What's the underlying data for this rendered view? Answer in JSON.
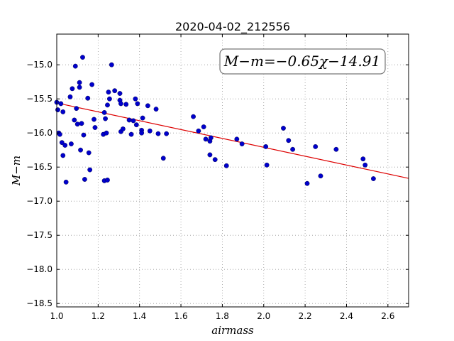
{
  "chart_data": {
    "type": "scatter",
    "title": "2020-04-02_212556",
    "xlabel": "airmass",
    "ylabel": "M−m",
    "xlim": [
      1.0,
      2.7
    ],
    "ylim": [
      -18.55,
      -14.55
    ],
    "x_ticks": [
      1.0,
      1.2,
      1.4,
      1.6,
      1.8,
      2.0,
      2.2,
      2.4,
      2.6
    ],
    "x_tick_labels": [
      "1.0",
      "1.2",
      "1.4",
      "1.6",
      "1.8",
      "2.0",
      "2.2",
      "2.4",
      "2.6"
    ],
    "y_ticks": [
      -15.0,
      -15.5,
      -16.0,
      -16.5,
      -17.0,
      -17.5,
      -18.0,
      -18.5
    ],
    "y_tick_labels": [
      "−15.0",
      "−15.5",
      "−16.0",
      "−16.5",
      "−17.0",
      "−17.5",
      "−18.0",
      "−18.5"
    ],
    "grid": true,
    "point_color": "#0000cc",
    "line_color": "#dd0000",
    "fit": {
      "slope": -0.65,
      "intercept": -14.91
    },
    "annotation": "M−m=−0.65χ−14.91",
    "points": [
      [
        1.0,
        -15.55
      ],
      [
        1.005,
        -15.66
      ],
      [
        1.01,
        -16.0
      ],
      [
        1.015,
        -16.02
      ],
      [
        1.02,
        -15.57
      ],
      [
        1.025,
        -16.14
      ],
      [
        1.03,
        -15.69
      ],
      [
        1.03,
        -16.33
      ],
      [
        1.04,
        -16.18
      ],
      [
        1.045,
        -16.72
      ],
      [
        1.065,
        -15.47
      ],
      [
        1.07,
        -16.16
      ],
      [
        1.075,
        -15.35
      ],
      [
        1.085,
        -15.81
      ],
      [
        1.09,
        -15.02
      ],
      [
        1.095,
        -15.64
      ],
      [
        1.1,
        -15.87
      ],
      [
        1.11,
        -15.26
      ],
      [
        1.11,
        -15.33
      ],
      [
        1.115,
        -16.25
      ],
      [
        1.12,
        -15.86
      ],
      [
        1.125,
        -14.89
      ],
      [
        1.13,
        -16.03
      ],
      [
        1.135,
        -16.68
      ],
      [
        1.15,
        -15.49
      ],
      [
        1.155,
        -16.29
      ],
      [
        1.16,
        -16.54
      ],
      [
        1.17,
        -15.29
      ],
      [
        1.18,
        -15.8
      ],
      [
        1.185,
        -15.92
      ],
      [
        1.225,
        -16.02
      ],
      [
        1.23,
        -15.7
      ],
      [
        1.235,
        -15.79
      ],
      [
        1.23,
        -16.7
      ],
      [
        1.24,
        -16.0
      ],
      [
        1.245,
        -15.59
      ],
      [
        1.245,
        -16.69
      ],
      [
        1.25,
        -15.4
      ],
      [
        1.255,
        -15.5
      ],
      [
        1.265,
        -15.0
      ],
      [
        1.28,
        -15.38
      ],
      [
        1.305,
        -15.42
      ],
      [
        1.305,
        -15.52
      ],
      [
        1.31,
        -15.57
      ],
      [
        1.31,
        -15.98
      ],
      [
        1.32,
        -15.94
      ],
      [
        1.335,
        -15.58
      ],
      [
        1.35,
        -15.81
      ],
      [
        1.36,
        -16.02
      ],
      [
        1.37,
        -15.82
      ],
      [
        1.38,
        -15.5
      ],
      [
        1.385,
        -15.88
      ],
      [
        1.39,
        -15.57
      ],
      [
        1.41,
        -15.96
      ],
      [
        1.41,
        -16.0
      ],
      [
        1.415,
        -15.78
      ],
      [
        1.44,
        -15.6
      ],
      [
        1.45,
        -15.97
      ],
      [
        1.48,
        -15.65
      ],
      [
        1.49,
        -16.01
      ],
      [
        1.515,
        -16.37
      ],
      [
        1.53,
        -16.01
      ],
      [
        1.66,
        -15.76
      ],
      [
        1.685,
        -15.97
      ],
      [
        1.71,
        -15.91
      ],
      [
        1.72,
        -16.09
      ],
      [
        1.74,
        -16.12
      ],
      [
        1.74,
        -16.32
      ],
      [
        1.745,
        -16.07
      ],
      [
        1.765,
        -16.39
      ],
      [
        1.82,
        -16.48
      ],
      [
        1.87,
        -16.09
      ],
      [
        1.895,
        -16.16
      ],
      [
        2.01,
        -16.2
      ],
      [
        2.015,
        -16.47
      ],
      [
        2.095,
        -15.93
      ],
      [
        2.12,
        -16.11
      ],
      [
        2.14,
        -16.24
      ],
      [
        2.21,
        -16.74
      ],
      [
        2.25,
        -16.2
      ],
      [
        2.275,
        -16.63
      ],
      [
        2.35,
        -16.24
      ],
      [
        2.48,
        -16.38
      ],
      [
        2.49,
        -16.47
      ],
      [
        2.53,
        -16.67
      ]
    ]
  }
}
